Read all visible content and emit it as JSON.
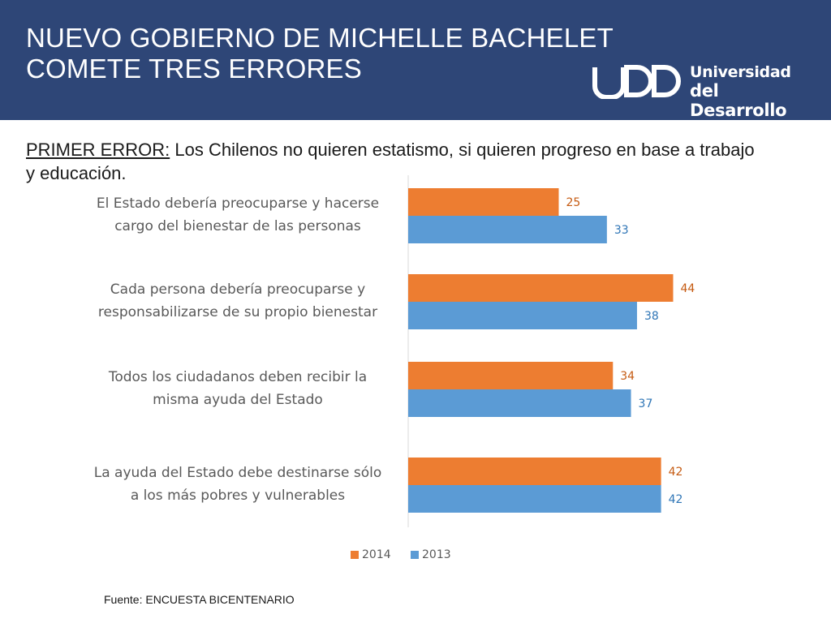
{
  "header": {
    "title_lines": [
      "NUEVO GOBIERNO DE MICHELLE BACHELET",
      "COMETE TRES ERRORES"
    ],
    "logo": {
      "icon": "udd-logo",
      "line1": "Universidad",
      "line2": "del Desarrollo"
    }
  },
  "subtitle": {
    "lead": "PRIMER ERROR:",
    "text": " Los Chilenos no quieren estatismo, si quieren progreso en base a trabajo y educación."
  },
  "chart_data": {
    "type": "bar",
    "orientation": "horizontal",
    "categories": [
      [
        "El Estado debería preocuparse y hacerse",
        "cargo del bienestar de las personas"
      ],
      [
        "Cada persona debería preocuparse y",
        "responsabilizarse de su propio bienestar"
      ],
      [
        "Todos los ciudadanos deben recibir la",
        "misma ayuda del Estado"
      ],
      [
        "La ayuda del Estado debe destinarse sólo",
        "a los más pobres y vulnerables"
      ]
    ],
    "series": [
      {
        "name": "2014",
        "values": [
          25,
          44,
          34,
          42
        ],
        "color": "#ed7d31",
        "label_color": "#c55a11"
      },
      {
        "name": "2013",
        "values": [
          33,
          38,
          37,
          42
        ],
        "color": "#5b9bd5",
        "label_color": "#2e75b6"
      }
    ],
    "data_labels": true,
    "legend": "bottom",
    "grid": false
  },
  "source": "Fuente: ENCUESTA BICENTENARIO"
}
